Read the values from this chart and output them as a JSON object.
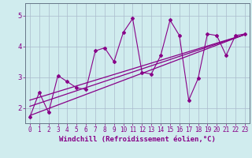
{
  "xlabel": "Windchill (Refroidissement éolien,°C)",
  "ylabel": "",
  "bg_color": "#d0ecee",
  "line_color": "#880088",
  "grid_color": "#aabbcc",
  "xlim": [
    -0.5,
    23.5
  ],
  "ylim": [
    1.5,
    5.4
  ],
  "yticks": [
    2,
    3,
    4,
    5
  ],
  "xticks": [
    0,
    1,
    2,
    3,
    4,
    5,
    6,
    7,
    8,
    9,
    10,
    11,
    12,
    13,
    14,
    15,
    16,
    17,
    18,
    19,
    20,
    21,
    22,
    23
  ],
  "scatter_x": [
    0,
    1,
    2,
    3,
    4,
    5,
    6,
    7,
    8,
    9,
    10,
    11,
    12,
    13,
    14,
    15,
    16,
    17,
    18,
    19,
    20,
    21,
    22,
    23
  ],
  "scatter_y": [
    1.7,
    2.5,
    1.85,
    3.05,
    2.85,
    2.65,
    2.6,
    3.85,
    3.95,
    3.5,
    4.45,
    4.9,
    3.15,
    3.1,
    3.7,
    4.85,
    4.35,
    2.25,
    2.95,
    4.4,
    4.35,
    3.7,
    4.35,
    4.4
  ],
  "line1_x": [
    0,
    23
  ],
  "line1_y": [
    1.75,
    4.38
  ],
  "line2_x": [
    0,
    23
  ],
  "line2_y": [
    2.05,
    4.38
  ],
  "line3_x": [
    0,
    23
  ],
  "line3_y": [
    2.25,
    4.38
  ],
  "xlabel_fontsize": 6.5,
  "tick_fontsize": 5.5
}
